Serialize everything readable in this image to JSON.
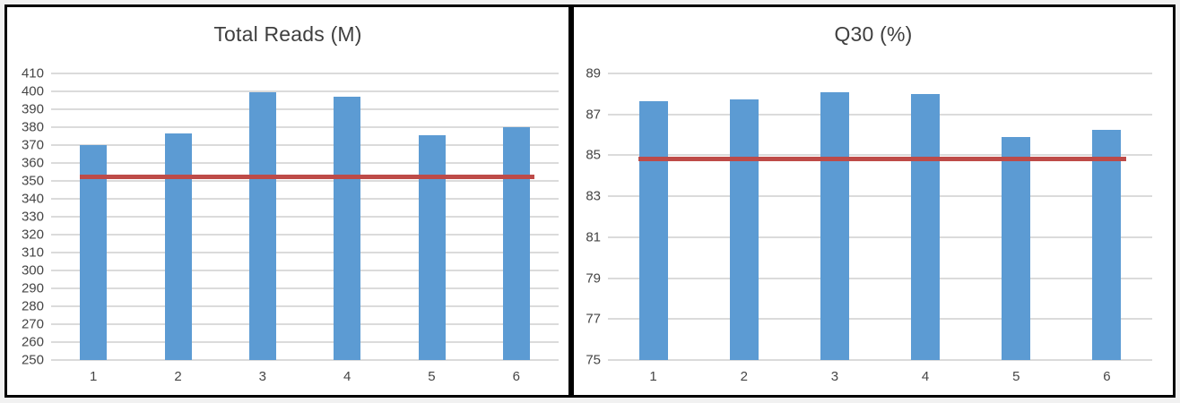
{
  "colors": {
    "bar": "#5C9BD3",
    "reference_line": "#BE4B48",
    "gridline": "#DBDBDB",
    "axis_text": "#454545",
    "title_text": "#3F3F3F",
    "panel_border": "#000000",
    "panel_background": "#FFFFFF",
    "page_background": "#F1F1F1"
  },
  "chart_data": [
    {
      "type": "bar",
      "title": "Total Reads (M)",
      "categories": [
        "1",
        "2",
        "3",
        "4",
        "5",
        "6"
      ],
      "values": [
        370,
        376.5,
        399.5,
        397,
        375.5,
        380
      ],
      "reference_line": 352,
      "ylim": [
        250,
        410
      ],
      "ytick_step": 10,
      "xlabel": "",
      "ylabel": "",
      "grid": "horizontal",
      "legend": "none"
    },
    {
      "type": "bar",
      "title": "Q30 (%)",
      "categories": [
        "1",
        "2",
        "3",
        "4",
        "5",
        "6"
      ],
      "values": [
        87.65,
        87.75,
        88.1,
        88.0,
        85.9,
        86.25
      ],
      "reference_line": 84.8,
      "ylim": [
        75,
        89
      ],
      "ytick_step": 2,
      "xlabel": "",
      "ylabel": "",
      "grid": "horizontal",
      "legend": "none"
    }
  ]
}
